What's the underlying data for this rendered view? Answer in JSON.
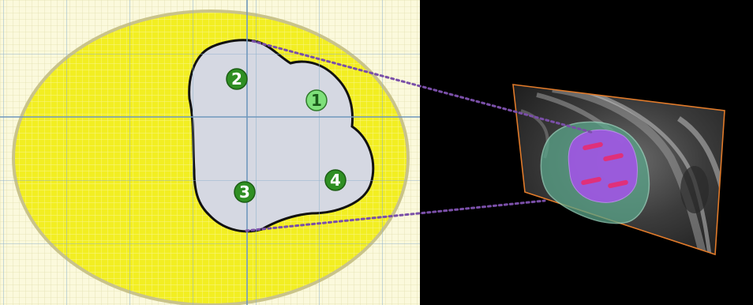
{
  "markers": [
    {
      "label": "1",
      "fill": "#7ee07a",
      "text_color": "#1a5a1a"
    },
    {
      "label": "2",
      "fill": "#2f8f23",
      "text_color": "#ffffff"
    },
    {
      "label": "3",
      "fill": "#2f8f23",
      "text_color": "#ffffff"
    },
    {
      "label": "4",
      "fill": "#2f8f23",
      "text_color": "#ffffff"
    }
  ],
  "colors": {
    "grid_background": "#fbf9dc",
    "grid_minor": "#e6e3b4",
    "grid_major": "#8fb0cc",
    "ellipse_fill": "#f2ee22",
    "ellipse_outline": "#c9c38a",
    "region_fill": "#d5d8e2",
    "region_outline": "#111111",
    "connector": "#7a4fa8",
    "panel_background": "#000000",
    "plane_outline": "#e07a2a",
    "green_volume": "#5aa58a",
    "purple_volume": "#a354e8",
    "pink_rods": "#e0307a"
  }
}
